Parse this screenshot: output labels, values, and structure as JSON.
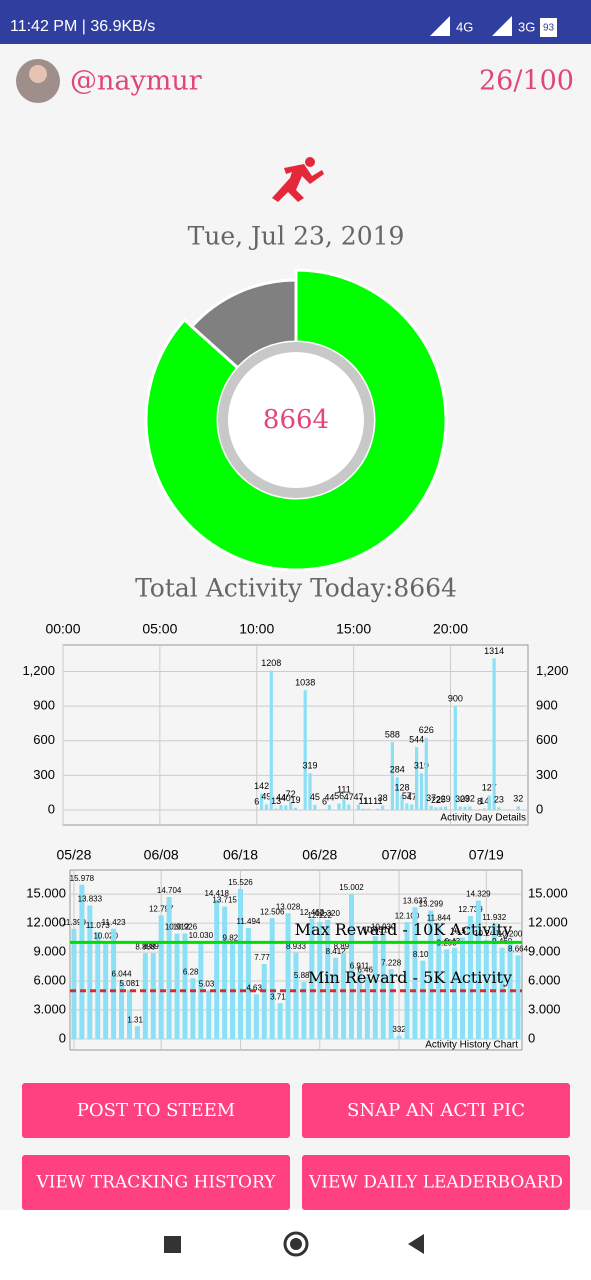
{
  "status_bar": {
    "left": "11:42 PM | 36.9KB/s",
    "network_1": "4G",
    "network_2": "3G",
    "battery": "93"
  },
  "header": {
    "username": "@naymur",
    "rank": "26/100"
  },
  "date": "Tue, Jul 23, 2019",
  "donut": {
    "type": "donut",
    "values": [
      8664,
      1336
    ],
    "colors": [
      "#00ff00",
      "#808080"
    ]
  },
  "total_label": "Total Activity Today:8664",
  "day_chart": {
    "type": "bar",
    "x": [
      10,
      10.25,
      10.5,
      10.75,
      11,
      11.25,
      11.5,
      11.75,
      12,
      12.5,
      12.75,
      13,
      13.5,
      13.75,
      14.25,
      14.5,
      14.75,
      15.25,
      15.5,
      15.75,
      16.25,
      16.5,
      17,
      17.25,
      17.5,
      17.75,
      18,
      18.25,
      18.5,
      18.75,
      19,
      19.25,
      19.5,
      19.75,
      20.25,
      20.5,
      20.75,
      21,
      21.5,
      21.75,
      22,
      22.25,
      22.5,
      23.5
    ],
    "values": [
      6,
      142,
      49,
      1208,
      13,
      44,
      40,
      72,
      19,
      1038,
      319,
      45,
      6,
      44,
      56,
      111,
      47,
      47,
      11,
      11,
      11,
      38,
      588,
      284,
      128,
      57,
      47,
      544,
      319,
      626,
      37,
      22,
      25,
      29,
      900,
      30,
      29,
      32,
      8,
      14,
      127,
      1314,
      23,
      32
    ],
    "color": "#8be0f5",
    "xlim": [
      0,
      24
    ],
    "xticks": [
      {
        "value": 0,
        "label": "00:00"
      },
      {
        "value": 5,
        "label": "05:00"
      },
      {
        "value": 10,
        "label": "10:00"
      },
      {
        "value": 15,
        "label": "15:00"
      },
      {
        "value": 20,
        "label": "20:00"
      }
    ],
    "ylim": [
      0,
      1430
    ],
    "yticks": [
      0,
      300,
      600,
      900,
      {
        "value": 1200,
        "label": "1,200"
      }
    ],
    "grid": true,
    "caption": "Activity Day Details"
  },
  "history_chart": {
    "type": "bar",
    "categories": [
      "05/28",
      null,
      null,
      null,
      null,
      null,
      null,
      null,
      null,
      null,
      null,
      "06/08",
      null,
      null,
      null,
      null,
      null,
      null,
      null,
      null,
      null,
      "06/18",
      null,
      null,
      null,
      null,
      null,
      null,
      null,
      null,
      null,
      "06/28",
      null,
      null,
      null,
      null,
      null,
      null,
      null,
      null,
      null,
      "07/08",
      null,
      null,
      null,
      null,
      null,
      null,
      null,
      null,
      null,
      null,
      "07/19",
      null,
      null,
      null,
      null
    ],
    "values": [
      11399,
      15978,
      13833,
      11073,
      10020,
      11423,
      6044,
      5081,
      1319,
      8888,
      8896,
      12797,
      14704,
      10912,
      10926,
      6285,
      10030,
      5037,
      14418,
      13715,
      9822,
      15526,
      11494,
      4630,
      7772,
      12506,
      3710,
      13028,
      8933,
      5888,
      12463,
      12122,
      12320,
      8412,
      8897,
      15002,
      6911,
      6465,
      10651,
      10930,
      7228,
      332,
      12100,
      13637,
      8108,
      13299,
      11844,
      9293,
      9430,
      10513,
      12739,
      14329,
      10244,
      11932,
      9460,
      10200,
      8664
    ],
    "value_labels": [
      "11.399",
      "15.978",
      "13.833",
      "11.073",
      "10.020",
      "11.423",
      "6.044",
      "5.081",
      "1.319",
      "8.888",
      "8.896",
      "12.797",
      "14.704",
      "10.912",
      "10.926",
      "6.285",
      "10.030",
      "5.037",
      "14.418",
      "13.715",
      "9.822",
      "15.526",
      "11.494",
      "4.630",
      "7.772",
      "12.506",
      "3.710",
      "13.028",
      "8.933",
      "5.888",
      "12.463",
      "12.122",
      "12.320",
      "8.412",
      "8.897",
      "15.002",
      "6.911",
      "6.465",
      "10.651",
      "10.930",
      "7.228",
      "332",
      "12.100",
      "13.637",
      "8.108",
      "13.299",
      "11.844",
      "9.293",
      "9.430",
      "10.513",
      "12.739",
      "14.329",
      "10.244",
      "11.932",
      "9.460",
      "10.200",
      "8.664"
    ],
    "color": "#8be0f5",
    "ylim": [
      0,
      17500
    ],
    "yticks": [
      0,
      {
        "value": 3000,
        "label": "3.000"
      },
      {
        "value": 6000,
        "label": "6.000"
      },
      {
        "value": 9000,
        "label": "9.000"
      },
      {
        "value": 12000,
        "label": "12.000"
      },
      {
        "value": 15000,
        "label": "15.000"
      }
    ],
    "grid": true,
    "reference_lines": [
      {
        "value": 10000,
        "label": "Max Reward - 10K Activity",
        "color": "#00dd00",
        "style": "solid"
      },
      {
        "value": 5000,
        "label": "Min Reward - 5K Activity",
        "color": "#d32f2f",
        "style": "dashed"
      }
    ],
    "caption": "Activity History Chart"
  },
  "buttons": [
    "POST TO STEEM",
    "SNAP AN ACTI PIC",
    "VIEW TRACKING HISTORY",
    "VIEW DAILY LEADERBOARD"
  ]
}
